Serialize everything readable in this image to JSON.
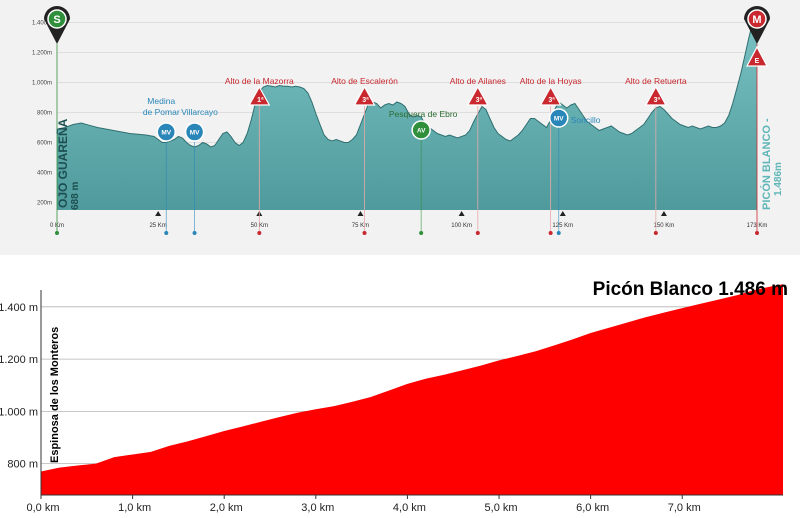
{
  "colors": {
    "profile_fill": "#4f9a9c",
    "profile_top": "#7cc3c4",
    "panel_bg": "#f2f2f2",
    "climb_red": "#c8282e",
    "start_green": "#2f8f3a",
    "mv_blue": "#2a86b8",
    "finish_fill": "#ff0000"
  },
  "chart_data": [
    {
      "type": "area",
      "title": "",
      "x_unit": "Km",
      "xlim": [
        0,
        173
      ],
      "ylim": [
        150,
        1550
      ],
      "y_ticks": [
        "200m",
        "400m",
        "600m",
        "800m",
        "1.000m",
        "1.200m",
        "1.400m"
      ],
      "y_tick_values": [
        200,
        400,
        600,
        800,
        1000,
        1200,
        1400
      ],
      "x_ticks": [
        "0 Km",
        "25 Km",
        "50 Km",
        "75 Km",
        "100 Km",
        "125 Km",
        "150 Km",
        "173 Km"
      ],
      "x_tick_values": [
        0,
        25,
        50,
        75,
        100,
        125,
        150,
        173
      ],
      "start": {
        "label": "OJO GUAREÑA",
        "altitude": "688 m",
        "badge": "S"
      },
      "finish": {
        "label": "PICÓN BLANCO -",
        "altitude": "1.486m",
        "badge": "M",
        "tag": "E"
      },
      "points": [
        [
          0,
          688
        ],
        [
          2,
          700
        ],
        [
          4,
          720
        ],
        [
          6,
          730
        ],
        [
          8,
          715
        ],
        [
          10,
          700
        ],
        [
          12,
          690
        ],
        [
          14,
          680
        ],
        [
          16,
          670
        ],
        [
          18,
          660
        ],
        [
          20,
          655
        ],
        [
          22,
          650
        ],
        [
          24,
          640
        ],
        [
          25,
          620
        ],
        [
          26,
          600
        ],
        [
          27,
          600
        ],
        [
          28,
          610
        ],
        [
          29,
          620
        ],
        [
          30,
          640
        ],
        [
          31,
          630
        ],
        [
          32,
          600
        ],
        [
          33,
          580
        ],
        [
          34,
          570
        ],
        [
          35,
          580
        ],
        [
          36,
          600
        ],
        [
          37,
          590
        ],
        [
          38,
          570
        ],
        [
          39,
          580
        ],
        [
          40,
          620
        ],
        [
          41,
          660
        ],
        [
          42,
          670
        ],
        [
          43,
          640
        ],
        [
          44,
          600
        ],
        [
          45,
          580
        ],
        [
          46,
          600
        ],
        [
          47,
          660
        ],
        [
          48,
          750
        ],
        [
          49,
          860
        ],
        [
          50,
          940
        ],
        [
          51,
          970
        ],
        [
          52,
          980
        ],
        [
          53,
          975
        ],
        [
          54,
          970
        ],
        [
          55,
          980
        ],
        [
          56,
          975
        ],
        [
          57,
          975
        ],
        [
          58,
          970
        ],
        [
          59,
          975
        ],
        [
          60,
          970
        ],
        [
          61,
          960
        ],
        [
          62,
          930
        ],
        [
          63,
          870
        ],
        [
          64,
          790
        ],
        [
          65,
          720
        ],
        [
          66,
          650
        ],
        [
          67,
          620
        ],
        [
          68,
          610
        ],
        [
          69,
          620
        ],
        [
          70,
          610
        ],
        [
          71,
          600
        ],
        [
          72,
          600
        ],
        [
          73,
          620
        ],
        [
          74,
          650
        ],
        [
          75,
          720
        ],
        [
          76,
          790
        ],
        [
          77,
          860
        ],
        [
          78,
          870
        ],
        [
          79,
          860
        ],
        [
          80,
          830
        ],
        [
          81,
          850
        ],
        [
          82,
          860
        ],
        [
          83,
          850
        ],
        [
          84,
          870
        ],
        [
          85,
          860
        ],
        [
          86,
          840
        ],
        [
          87,
          790
        ],
        [
          88,
          770
        ],
        [
          89,
          780
        ],
        [
          90,
          770
        ],
        [
          91,
          720
        ],
        [
          92,
          700
        ],
        [
          93,
          680
        ],
        [
          94,
          660
        ],
        [
          95,
          650
        ],
        [
          96,
          640
        ],
        [
          97,
          650
        ],
        [
          98,
          640
        ],
        [
          99,
          630
        ],
        [
          100,
          640
        ],
        [
          101,
          650
        ],
        [
          102,
          680
        ],
        [
          103,
          740
        ],
        [
          104,
          790
        ],
        [
          105,
          840
        ],
        [
          106,
          820
        ],
        [
          107,
          760
        ],
        [
          108,
          700
        ],
        [
          109,
          660
        ],
        [
          110,
          640
        ],
        [
          111,
          620
        ],
        [
          112,
          610
        ],
        [
          113,
          630
        ],
        [
          114,
          650
        ],
        [
          115,
          680
        ],
        [
          116,
          720
        ],
        [
          117,
          760
        ],
        [
          118,
          760
        ],
        [
          119,
          740
        ],
        [
          120,
          720
        ],
        [
          121,
          700
        ],
        [
          122,
          750
        ],
        [
          123,
          820
        ],
        [
          124,
          870
        ],
        [
          125,
          850
        ],
        [
          126,
          830
        ],
        [
          127,
          850
        ],
        [
          128,
          860
        ],
        [
          129,
          820
        ],
        [
          130,
          780
        ],
        [
          131,
          740
        ],
        [
          132,
          720
        ],
        [
          133,
          700
        ],
        [
          134,
          680
        ],
        [
          135,
          690
        ],
        [
          136,
          700
        ],
        [
          137,
          710
        ],
        [
          138,
          690
        ],
        [
          139,
          670
        ],
        [
          140,
          660
        ],
        [
          141,
          650
        ],
        [
          142,
          660
        ],
        [
          143,
          680
        ],
        [
          144,
          700
        ],
        [
          145,
          720
        ],
        [
          146,
          760
        ],
        [
          147,
          800
        ],
        [
          148,
          830
        ],
        [
          149,
          840
        ],
        [
          150,
          820
        ],
        [
          151,
          790
        ],
        [
          152,
          760
        ],
        [
          153,
          740
        ],
        [
          154,
          720
        ],
        [
          155,
          710
        ],
        [
          156,
          700
        ],
        [
          157,
          710
        ],
        [
          158,
          700
        ],
        [
          159,
          690
        ],
        [
          160,
          700
        ],
        [
          161,
          710
        ],
        [
          162,
          700
        ],
        [
          163,
          700
        ],
        [
          164,
          710
        ],
        [
          165,
          730
        ],
        [
          166,
          780
        ],
        [
          167,
          860
        ],
        [
          168,
          960
        ],
        [
          169,
          1060
        ],
        [
          170,
          1180
        ],
        [
          171,
          1300
        ],
        [
          172,
          1410
        ],
        [
          173,
          1486
        ]
      ],
      "climbs": [
        {
          "name": "Alto de la Mazorra",
          "category": "1ª",
          "km": 50
        },
        {
          "name": "Alto de Escalerón",
          "category": "3ª",
          "km": 76
        },
        {
          "name": "Alto de Ailanes",
          "category": "3ª",
          "km": 104
        },
        {
          "name": "Alto de la Hoyas",
          "category": "3ª",
          "km": 122
        },
        {
          "name": "Alto de Retuerta",
          "category": "3ª",
          "km": 148
        }
      ],
      "points_of_interest": [
        {
          "badge": "MV",
          "name": "Medina de Pomar",
          "name_lines": [
            "Medina",
            "de Pomar"
          ],
          "km": 27
        },
        {
          "badge": "MV",
          "name": "Villarcayo",
          "km": 34
        },
        {
          "badge": "AV",
          "name": "Pesquera de Ebro",
          "km": 90
        },
        {
          "badge": "MV",
          "name": "Soncillo",
          "km": 124
        }
      ]
    },
    {
      "type": "area",
      "title": "Picón Blanco 1.486 m",
      "xlabel": "",
      "ylabel": "Espinosa de los Monteros",
      "xlim": [
        0,
        8.1
      ],
      "ylim": [
        680,
        1560
      ],
      "x_ticks": [
        "0,0 km",
        "1,0 km",
        "2,0 km",
        "3,0 km",
        "4,0 km",
        "5,0 km",
        "6,0 km",
        "7,0 km"
      ],
      "x_tick_values": [
        0,
        1,
        2,
        3,
        4,
        5,
        6,
        7
      ],
      "y_ticks": [
        "800 m",
        "1.000 m",
        "1.200 m",
        "1.400 m"
      ],
      "y_tick_values": [
        800,
        1000,
        1200,
        1400
      ],
      "grid": true,
      "points": [
        [
          0,
          770
        ],
        [
          0.2,
          785
        ],
        [
          0.4,
          793
        ],
        [
          0.6,
          800
        ],
        [
          0.8,
          825
        ],
        [
          1.0,
          835
        ],
        [
          1.2,
          845
        ],
        [
          1.4,
          868
        ],
        [
          1.6,
          885
        ],
        [
          1.8,
          905
        ],
        [
          2.0,
          925
        ],
        [
          2.2,
          942
        ],
        [
          2.4,
          960
        ],
        [
          2.6,
          978
        ],
        [
          2.8,
          995
        ],
        [
          3.0,
          1008
        ],
        [
          3.2,
          1020
        ],
        [
          3.4,
          1037
        ],
        [
          3.6,
          1055
        ],
        [
          3.8,
          1080
        ],
        [
          4.0,
          1105
        ],
        [
          4.2,
          1125
        ],
        [
          4.4,
          1140
        ],
        [
          4.6,
          1157
        ],
        [
          4.8,
          1175
        ],
        [
          5.0,
          1195
        ],
        [
          5.2,
          1212
        ],
        [
          5.4,
          1230
        ],
        [
          5.6,
          1252
        ],
        [
          5.8,
          1275
        ],
        [
          6.0,
          1300
        ],
        [
          6.2,
          1320
        ],
        [
          6.4,
          1340
        ],
        [
          6.6,
          1360
        ],
        [
          6.8,
          1378
        ],
        [
          7.0,
          1395
        ],
        [
          7.2,
          1412
        ],
        [
          7.4,
          1428
        ],
        [
          7.6,
          1445
        ],
        [
          7.8,
          1465
        ],
        [
          8.0,
          1480
        ],
        [
          8.1,
          1486
        ]
      ]
    }
  ]
}
